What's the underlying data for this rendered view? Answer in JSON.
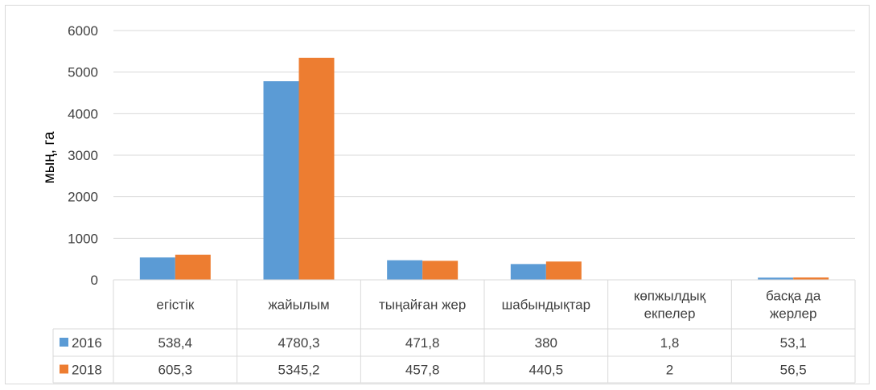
{
  "chart_data": {
    "type": "bar",
    "ylabel": "мың, га",
    "ylim": [
      0,
      6000
    ],
    "yticks": [
      0,
      1000,
      2000,
      3000,
      4000,
      5000,
      6000
    ],
    "grid": true,
    "legend": "data-table",
    "categories": [
      [
        "егістік"
      ],
      [
        "жайылым"
      ],
      [
        "тыңайған жер"
      ],
      [
        "шабындықтар"
      ],
      [
        "көпжылдық",
        "екпелер"
      ],
      [
        "басқа да",
        "жерлер"
      ]
    ],
    "series": [
      {
        "name": "2016",
        "color": "#5b9bd5",
        "values": [
          538.4,
          4780.3,
          471.8,
          380,
          1.8,
          53.1
        ],
        "labels": [
          "538,4",
          "4780,3",
          "471,8",
          "380",
          "1,8",
          "53,1"
        ]
      },
      {
        "name": "2018",
        "color": "#ed7d31",
        "values": [
          605.3,
          5345.2,
          457.8,
          440.5,
          2,
          56.5
        ],
        "labels": [
          "605,3",
          "5345,2",
          "457,8",
          "440,5",
          "2",
          "56,5"
        ]
      }
    ]
  }
}
